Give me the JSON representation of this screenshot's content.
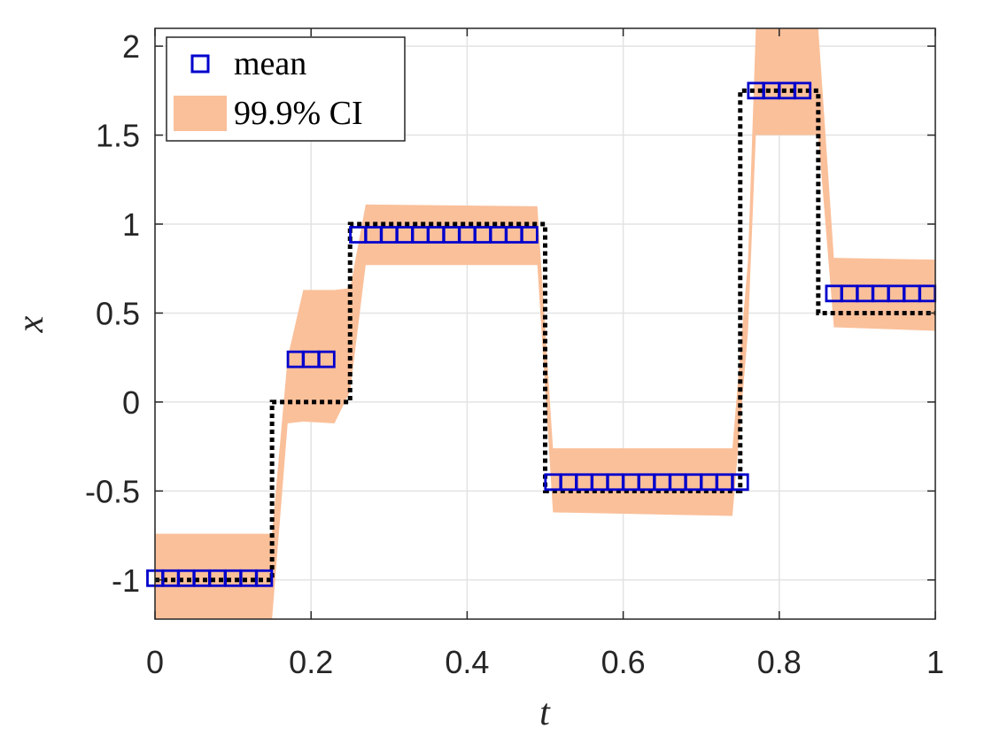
{
  "chart_data": {
    "type": "line",
    "title": "",
    "xlabel": "t",
    "ylabel": "x",
    "xlim": [
      0,
      1
    ],
    "ylim": [
      -1.22,
      2.1
    ],
    "grid": true,
    "legend_position": "top-left",
    "xticks": [
      0,
      0.2,
      0.4,
      0.6,
      0.8,
      1
    ],
    "xtick_labels": [
      "0",
      "0.2",
      "0.4",
      "0.6",
      "0.8",
      "1"
    ],
    "yticks": [
      -1,
      -0.5,
      0,
      0.5,
      1,
      1.5,
      2
    ],
    "ytick_labels": [
      "-1",
      "-0.5",
      "0",
      "0.5",
      "1",
      "1.5",
      "2"
    ],
    "series": [
      {
        "name": "mean",
        "kind": "markers",
        "marker": "square",
        "color": "#0000cc",
        "x": [
          0,
          0.02,
          0.04,
          0.06,
          0.08,
          0.1,
          0.12,
          0.14,
          0.18,
          0.2,
          0.22,
          0.26,
          0.28,
          0.3,
          0.32,
          0.34,
          0.36,
          0.38,
          0.4,
          0.42,
          0.44,
          0.46,
          0.48,
          0.51,
          0.53,
          0.55,
          0.57,
          0.59,
          0.61,
          0.63,
          0.65,
          0.67,
          0.69,
          0.71,
          0.73,
          0.75,
          0.77,
          0.79,
          0.81,
          0.83,
          0.87,
          0.89,
          0.91,
          0.93,
          0.95,
          0.97,
          0.99
        ],
        "y": [
          -0.99,
          -0.99,
          -0.99,
          -0.99,
          -0.99,
          -0.99,
          -0.99,
          -0.99,
          0.24,
          0.24,
          0.24,
          0.94,
          0.94,
          0.94,
          0.94,
          0.94,
          0.94,
          0.94,
          0.94,
          0.94,
          0.94,
          0.94,
          0.94,
          -0.45,
          -0.45,
          -0.45,
          -0.45,
          -0.45,
          -0.45,
          -0.45,
          -0.45,
          -0.45,
          -0.45,
          -0.45,
          -0.45,
          -0.45,
          1.75,
          1.75,
          1.75,
          1.75,
          0.61,
          0.61,
          0.61,
          0.61,
          0.61,
          0.61,
          0.61
        ]
      },
      {
        "name": "99.9% CI",
        "kind": "band",
        "color": "#fac09a",
        "x": [
          0,
          0.15,
          0.17,
          0.19,
          0.23,
          0.25,
          0.27,
          0.49,
          0.51,
          0.74,
          0.76,
          0.77,
          0.85,
          0.87,
          1
        ],
        "lower": [
          -1.22,
          -1.22,
          -0.12,
          -0.11,
          -0.12,
          0.06,
          0.77,
          0.77,
          -0.62,
          -0.64,
          0.4,
          1.5,
          1.5,
          0.42,
          0.4
        ],
        "upper": [
          -0.74,
          -0.74,
          0.25,
          0.63,
          0.63,
          0.64,
          1.11,
          1.1,
          -0.26,
          -0.26,
          0.8,
          2.1,
          2.1,
          0.81,
          0.8
        ]
      },
      {
        "name": "",
        "kind": "stairs",
        "style": "dotted",
        "color": "#000000",
        "x": [
          0,
          0.15,
          0.15,
          0.25,
          0.25,
          0.5,
          0.5,
          0.75,
          0.75,
          0.85,
          0.85,
          1
        ],
        "y": [
          -1,
          -1,
          0,
          0,
          1,
          1,
          -0.5,
          -0.5,
          1.75,
          1.75,
          0.5,
          0.5
        ]
      }
    ]
  }
}
